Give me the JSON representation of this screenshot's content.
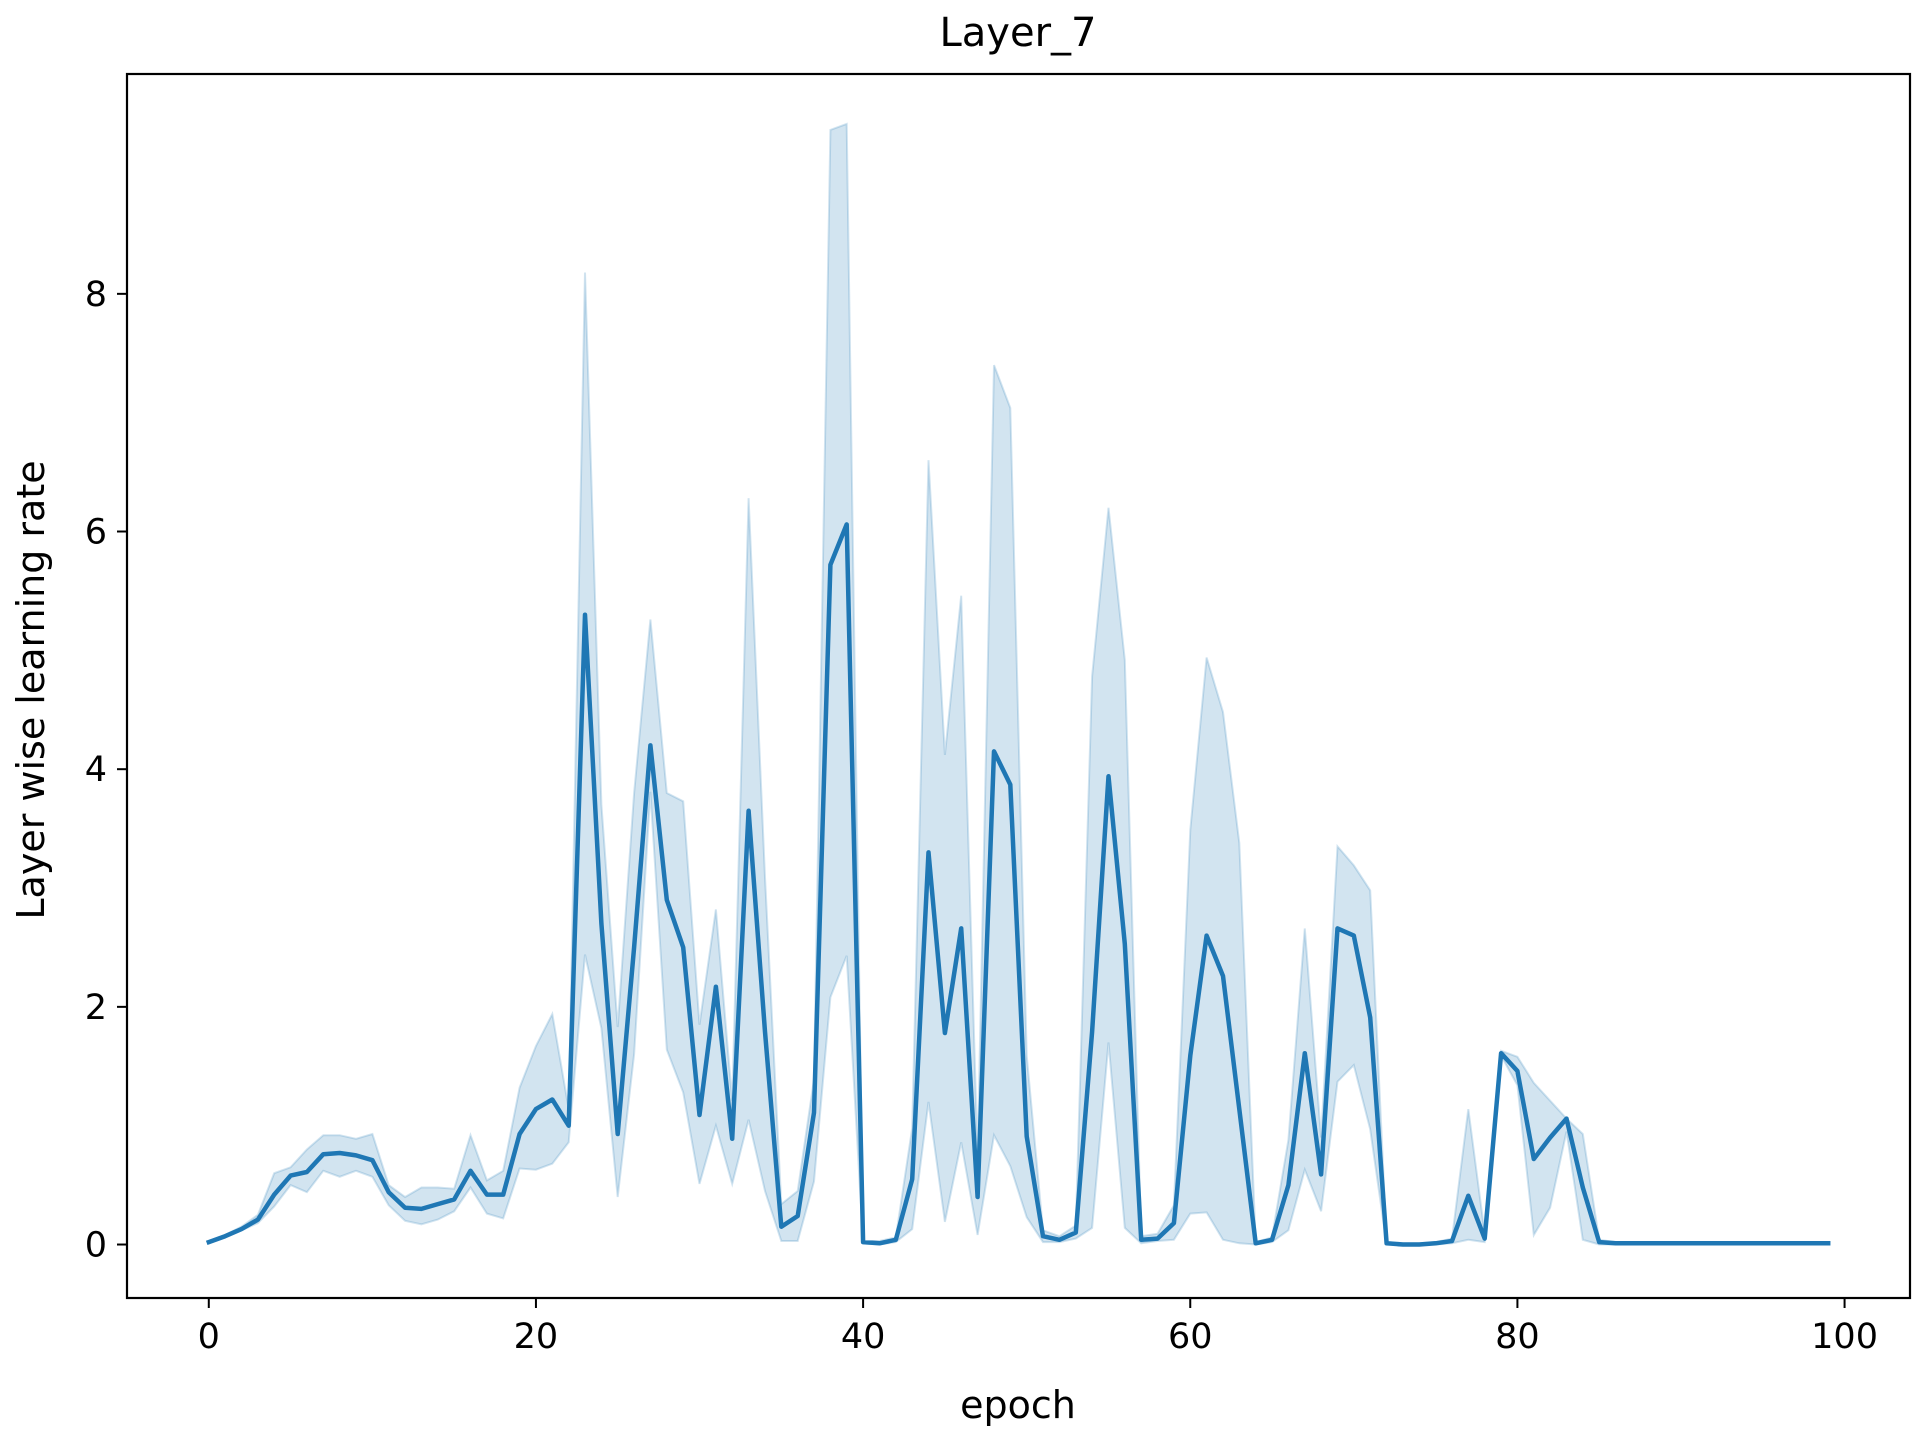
{
  "chart_data": {
    "type": "line",
    "title": "Layer_7",
    "xlabel": "epoch",
    "ylabel": "Layer wise learning rate",
    "xlim": [
      -5,
      104
    ],
    "ylim": [
      -0.45,
      9.85
    ],
    "xticks": [
      0,
      20,
      40,
      60,
      80,
      100
    ],
    "yticks": [
      0,
      2,
      4,
      6,
      8
    ],
    "grid": false,
    "colors": {
      "line": "#1f77b4",
      "band": "#1f77b4"
    },
    "series": [
      {
        "x": [
          0,
          1,
          2,
          3,
          4,
          5,
          6,
          7,
          8,
          9,
          10,
          11,
          12,
          13,
          14,
          15,
          16,
          17,
          18,
          19,
          20,
          21,
          22,
          23,
          24,
          25,
          26,
          27,
          28,
          29,
          30,
          31,
          32,
          33,
          34,
          35,
          36,
          37,
          38,
          39,
          40,
          41,
          42,
          43,
          44,
          45,
          46,
          47,
          48,
          49,
          50,
          51,
          52,
          53,
          54,
          55,
          56,
          57,
          58,
          59,
          60,
          61,
          62,
          63,
          64,
          65,
          66,
          67,
          68,
          69,
          70,
          71,
          72,
          73,
          74,
          75,
          76,
          77,
          78,
          79,
          80,
          81,
          82,
          83,
          84,
          85,
          86,
          87,
          88,
          89,
          90,
          91,
          92,
          93,
          94,
          95,
          96,
          97,
          98,
          99
        ],
        "y": [
          0.02,
          0.07,
          0.13,
          0.21,
          0.42,
          0.58,
          0.61,
          0.76,
          0.77,
          0.75,
          0.71,
          0.44,
          0.31,
          0.3,
          0.34,
          0.38,
          0.62,
          0.42,
          0.42,
          0.93,
          1.14,
          1.22,
          1.0,
          5.3,
          2.7,
          0.93,
          2.5,
          4.2,
          2.9,
          2.5,
          1.09,
          2.17,
          0.89,
          3.65,
          1.79,
          0.15,
          0.24,
          1.11,
          5.72,
          6.06,
          0.02,
          0.01,
          0.04,
          0.55,
          3.3,
          1.78,
          2.66,
          0.4,
          4.15,
          3.87,
          0.91,
          0.07,
          0.04,
          0.1,
          1.79,
          3.94,
          2.53,
          0.04,
          0.05,
          0.18,
          1.59,
          2.6,
          2.26,
          1.14,
          0.01,
          0.04,
          0.5,
          1.61,
          0.59,
          2.66,
          2.6,
          1.91,
          0.01,
          0.0,
          0.0,
          0.01,
          0.03,
          0.41,
          0.05,
          1.61,
          1.46,
          0.72,
          0.9,
          1.06,
          0.48,
          0.02,
          0.01,
          0.01,
          0.01,
          0.01,
          0.01,
          0.01,
          0.01,
          0.01,
          0.01,
          0.01,
          0.01,
          0.01,
          0.01,
          0.01
        ],
        "ci_lower": [
          0.01,
          0.06,
          0.12,
          0.18,
          0.32,
          0.5,
          0.44,
          0.62,
          0.57,
          0.62,
          0.57,
          0.33,
          0.2,
          0.17,
          0.21,
          0.28,
          0.48,
          0.26,
          0.22,
          0.64,
          0.63,
          0.68,
          0.86,
          2.44,
          1.82,
          0.4,
          1.6,
          3.81,
          1.64,
          1.28,
          0.51,
          1.0,
          0.51,
          1.05,
          0.45,
          0.03,
          0.03,
          0.53,
          2.08,
          2.43,
          0.01,
          0.0,
          0.02,
          0.13,
          1.2,
          0.19,
          0.86,
          0.08,
          0.92,
          0.66,
          0.23,
          0.02,
          0.02,
          0.05,
          0.14,
          1.7,
          0.14,
          0.01,
          0.03,
          0.04,
          0.26,
          0.27,
          0.04,
          0.01,
          0.0,
          0.02,
          0.12,
          0.63,
          0.28,
          1.37,
          1.51,
          0.97,
          0.0,
          0.0,
          0.0,
          0.0,
          0.01,
          0.04,
          0.02,
          1.59,
          1.34,
          0.08,
          0.31,
          0.95,
          0.04,
          0.0,
          0.0,
          0.0,
          0.0,
          0.0,
          0.0,
          0.0,
          0.0,
          0.0,
          0.0,
          0.0,
          0.0,
          0.0,
          0.0,
          0.0
        ],
        "ci_upper": [
          0.03,
          0.08,
          0.15,
          0.25,
          0.6,
          0.65,
          0.8,
          0.92,
          0.92,
          0.89,
          0.93,
          0.5,
          0.4,
          0.48,
          0.48,
          0.47,
          0.92,
          0.54,
          0.62,
          1.32,
          1.67,
          1.94,
          1.14,
          8.18,
          3.7,
          1.83,
          3.8,
          5.26,
          3.8,
          3.73,
          1.85,
          2.82,
          1.21,
          6.28,
          3.09,
          0.34,
          0.45,
          1.39,
          9.38,
          9.43,
          0.03,
          0.03,
          0.06,
          0.98,
          6.6,
          4.12,
          5.46,
          0.73,
          7.4,
          7.04,
          1.59,
          0.12,
          0.07,
          0.16,
          4.78,
          6.2,
          4.92,
          0.07,
          0.09,
          0.33,
          3.49,
          4.94,
          4.48,
          3.38,
          0.02,
          0.06,
          0.88,
          2.66,
          0.9,
          3.35,
          3.19,
          2.98,
          0.02,
          0.01,
          0.01,
          0.02,
          0.05,
          1.14,
          0.09,
          1.63,
          1.58,
          1.36,
          1.21,
          1.06,
          0.93,
          0.04,
          0.02,
          0.02,
          0.02,
          0.02,
          0.02,
          0.02,
          0.02,
          0.02,
          0.02,
          0.02,
          0.02,
          0.02,
          0.02,
          0.02
        ]
      }
    ]
  }
}
